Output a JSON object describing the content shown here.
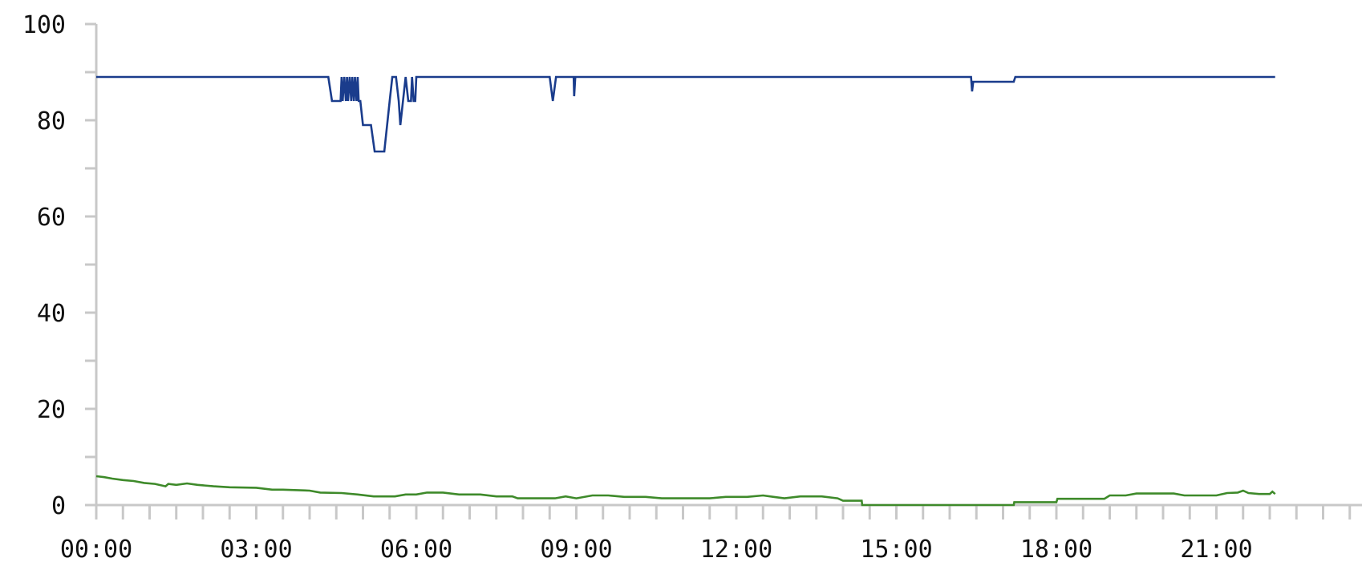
{
  "chart_data": {
    "type": "line",
    "title": "",
    "xlabel": "",
    "ylabel": "",
    "x_unit": "hours",
    "xlim": [
      0,
      24
    ],
    "ylim": [
      0,
      100
    ],
    "grid": false,
    "legend": "none",
    "x_tick_labels": [
      {
        "x": 0,
        "label": "00:00"
      },
      {
        "x": 3,
        "label": "03:00"
      },
      {
        "x": 6,
        "label": "06:00"
      },
      {
        "x": 9,
        "label": "09:00"
      },
      {
        "x": 12,
        "label": "12:00"
      },
      {
        "x": 15,
        "label": "15:00"
      },
      {
        "x": 18,
        "label": "18:00"
      },
      {
        "x": 21,
        "label": "21:00"
      }
    ],
    "x_minor_tick_step": 0.5,
    "y_tick_labels": [
      {
        "y": 0,
        "label": "0"
      },
      {
        "y": 20,
        "label": "20"
      },
      {
        "y": 40,
        "label": "40"
      },
      {
        "y": 60,
        "label": "60"
      },
      {
        "y": 80,
        "label": "80"
      },
      {
        "y": 100,
        "label": "100"
      }
    ],
    "y_minor_tick_step": 10,
    "series": [
      {
        "color": "#1a3c8c",
        "points": [
          [
            0.0,
            89
          ],
          [
            4.35,
            89
          ],
          [
            4.42,
            84
          ],
          [
            4.58,
            84
          ],
          [
            4.6,
            89
          ],
          [
            4.62,
            84
          ],
          [
            4.65,
            89
          ],
          [
            4.68,
            84
          ],
          [
            4.7,
            89
          ],
          [
            4.72,
            84
          ],
          [
            4.75,
            89
          ],
          [
            4.78,
            84
          ],
          [
            4.8,
            89
          ],
          [
            4.83,
            84
          ],
          [
            4.85,
            89
          ],
          [
            4.88,
            84
          ],
          [
            4.9,
            89
          ],
          [
            4.92,
            84
          ],
          [
            4.95,
            84
          ],
          [
            5.0,
            79
          ],
          [
            5.15,
            79
          ],
          [
            5.22,
            73.5
          ],
          [
            5.4,
            73.5
          ],
          [
            5.5,
            84
          ],
          [
            5.55,
            89
          ],
          [
            5.62,
            89
          ],
          [
            5.67,
            84
          ],
          [
            5.7,
            79
          ],
          [
            5.75,
            84
          ],
          [
            5.8,
            89
          ],
          [
            5.85,
            84
          ],
          [
            5.9,
            84
          ],
          [
            5.92,
            89
          ],
          [
            5.95,
            84
          ],
          [
            5.98,
            84
          ],
          [
            6.0,
            89
          ],
          [
            8.5,
            89
          ],
          [
            8.56,
            84
          ],
          [
            8.62,
            89
          ],
          [
            8.95,
            89
          ],
          [
            8.96,
            85
          ],
          [
            8.98,
            89
          ],
          [
            16.4,
            89
          ],
          [
            16.42,
            86
          ],
          [
            16.44,
            88
          ],
          [
            17.2,
            88
          ],
          [
            17.23,
            89
          ],
          [
            22.1,
            89
          ]
        ]
      },
      {
        "color": "#3e8a2a",
        "points": [
          [
            0.0,
            6
          ],
          [
            0.15,
            5.8
          ],
          [
            0.3,
            5.5
          ],
          [
            0.5,
            5.2
          ],
          [
            0.7,
            5.0
          ],
          [
            0.9,
            4.6
          ],
          [
            1.1,
            4.4
          ],
          [
            1.3,
            3.9
          ],
          [
            1.35,
            4.4
          ],
          [
            1.5,
            4.2
          ],
          [
            1.7,
            4.5
          ],
          [
            1.9,
            4.2
          ],
          [
            2.2,
            3.9
          ],
          [
            2.5,
            3.7
          ],
          [
            3.0,
            3.6
          ],
          [
            3.3,
            3.2
          ],
          [
            3.5,
            3.2
          ],
          [
            4.0,
            3.0
          ],
          [
            4.2,
            2.6
          ],
          [
            4.6,
            2.5
          ],
          [
            4.9,
            2.2
          ],
          [
            5.2,
            1.8
          ],
          [
            5.6,
            1.8
          ],
          [
            5.8,
            2.2
          ],
          [
            6.0,
            2.2
          ],
          [
            6.2,
            2.6
          ],
          [
            6.5,
            2.6
          ],
          [
            6.8,
            2.2
          ],
          [
            7.2,
            2.2
          ],
          [
            7.5,
            1.8
          ],
          [
            7.8,
            1.8
          ],
          [
            7.9,
            1.4
          ],
          [
            8.6,
            1.4
          ],
          [
            8.8,
            1.8
          ],
          [
            9.0,
            1.4
          ],
          [
            9.3,
            2.0
          ],
          [
            9.6,
            2.0
          ],
          [
            9.9,
            1.7
          ],
          [
            10.3,
            1.7
          ],
          [
            10.6,
            1.4
          ],
          [
            11.5,
            1.4
          ],
          [
            11.8,
            1.7
          ],
          [
            12.2,
            1.7
          ],
          [
            12.5,
            2.0
          ],
          [
            12.7,
            1.7
          ],
          [
            12.9,
            1.4
          ],
          [
            13.2,
            1.8
          ],
          [
            13.6,
            1.8
          ],
          [
            13.9,
            1.4
          ],
          [
            14.0,
            0.9
          ],
          [
            14.35,
            0.9
          ],
          [
            14.36,
            0
          ],
          [
            17.2,
            0
          ],
          [
            17.21,
            0.6
          ],
          [
            18.0,
            0.6
          ],
          [
            18.02,
            1.3
          ],
          [
            18.9,
            1.3
          ],
          [
            19.0,
            2.0
          ],
          [
            19.3,
            2.0
          ],
          [
            19.5,
            2.4
          ],
          [
            20.2,
            2.4
          ],
          [
            20.4,
            2.0
          ],
          [
            21.0,
            2.0
          ],
          [
            21.2,
            2.5
          ],
          [
            21.4,
            2.6
          ],
          [
            21.5,
            3.0
          ],
          [
            21.6,
            2.5
          ],
          [
            21.8,
            2.3
          ],
          [
            22.0,
            2.3
          ],
          [
            22.05,
            2.8
          ],
          [
            22.1,
            2.3
          ]
        ]
      }
    ]
  }
}
